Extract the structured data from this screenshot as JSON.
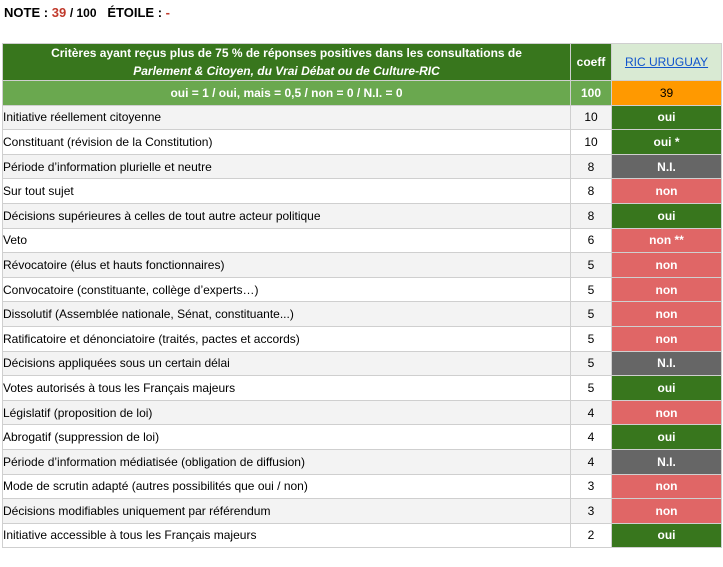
{
  "note": {
    "label": "NOTE",
    "sep1": ":",
    "score": "39",
    "max": "/ 100",
    "star_label": "ÉTOILE",
    "sep2": ":",
    "star_value": "-"
  },
  "header": {
    "line1": "Critères ayant reçus  plus de  75 % de réponses positives dans les consultations de",
    "line2": "Parlement & Citoyen, du Vrai Débat ou de Culture-RIC",
    "coeff": "coeff",
    "country": "RIC URUGUAY"
  },
  "scale": {
    "text": "oui = 1   /   oui, mais = 0,5   /   non = 0   /   N.I. = 0",
    "total": "100",
    "score": "39"
  },
  "colors": {
    "oui": "#38761d",
    "non": "#e06666",
    "ni": "#666666",
    "header": "#38761d",
    "score": "#ff9900"
  },
  "rows": [
    {
      "criterion": "Initiative réellement citoyenne",
      "coeff": "10",
      "value": "oui",
      "status": "oui"
    },
    {
      "criterion": "Constituant (révision de la Constitution)",
      "coeff": "10",
      "value": "oui *",
      "status": "oui"
    },
    {
      "criterion": "Période d’information plurielle et neutre",
      "coeff": "8",
      "value": "N.I.",
      "status": "ni"
    },
    {
      "criterion": "Sur tout sujet",
      "coeff": "8",
      "value": "non",
      "status": "non"
    },
    {
      "criterion": "Décisions supérieures à celles de tout autre acteur politique",
      "coeff": "8",
      "value": "oui",
      "status": "oui"
    },
    {
      "criterion": "Veto",
      "coeff": "6",
      "value": "non **",
      "status": "non"
    },
    {
      "criterion": "Révocatoire (élus et hauts fonctionnaires)",
      "coeff": "5",
      "value": "non",
      "status": "non"
    },
    {
      "criterion": "Convocatoire (constituante, collège d’experts…)",
      "coeff": "5",
      "value": "non",
      "status": "non"
    },
    {
      "criterion": "Dissolutif (Assemblée nationale, Sénat, constituante...)",
      "coeff": "5",
      "value": "non",
      "status": "non"
    },
    {
      "criterion": "Ratificatoire et dénonciatoire (traités, pactes et accords)",
      "coeff": "5",
      "value": "non",
      "status": "non"
    },
    {
      "criterion": "Décisions appliquées sous un certain délai",
      "coeff": "5",
      "value": "N.I.",
      "status": "ni"
    },
    {
      "criterion": "Votes autorisés à tous les Français majeurs",
      "coeff": "5",
      "value": "oui",
      "status": "oui"
    },
    {
      "criterion": "Législatif (proposition de loi)",
      "coeff": "4",
      "value": "non",
      "status": "non"
    },
    {
      "criterion": "Abrogatif (suppression de loi)",
      "coeff": "4",
      "value": "oui",
      "status": "oui"
    },
    {
      "criterion": "Période d’information médiatisée (obligation de diffusion)",
      "coeff": "4",
      "value": "N.I.",
      "status": "ni"
    },
    {
      "criterion": "Mode de scrutin adapté (autres possibilités que oui / non)",
      "coeff": "3",
      "value": "non",
      "status": "non"
    },
    {
      "criterion": "Décisions modifiables uniquement par référendum",
      "coeff": "3",
      "value": "non",
      "status": "non"
    },
    {
      "criterion": "Initiative accessible à tous les Français majeurs",
      "coeff": "2",
      "value": "oui",
      "status": "oui"
    }
  ]
}
